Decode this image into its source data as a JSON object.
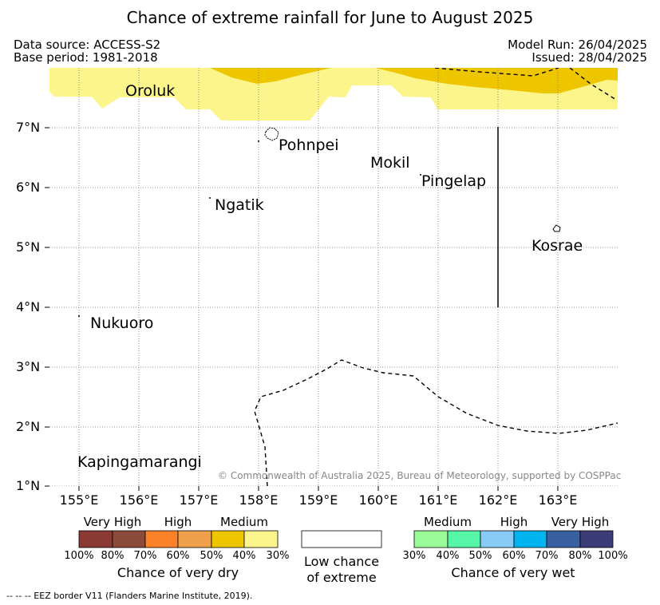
{
  "title": "Chance of extreme rainfall for June to August 2025",
  "data_source": "Data source: ACCESS-S2",
  "base_period": "Base period: 1981-2018",
  "model_run": "Model Run: 26/04/2025",
  "issued": "Issued: 28/04/2025",
  "map": {
    "lon_range": [
      154.5,
      164.0
    ],
    "lat_range": [
      1.0,
      8.0
    ],
    "grid": true,
    "x_ticks": [
      "155°E",
      "156°E",
      "157°E",
      "158°E",
      "159°E",
      "160°E",
      "161°E",
      "162°E",
      "163°E"
    ],
    "y_ticks": [
      "1°N",
      "2°N",
      "3°N",
      "4°N",
      "5°N",
      "6°N",
      "7°N"
    ],
    "places": [
      {
        "name": "Oroluk"
      },
      {
        "name": "Pohnpei"
      },
      {
        "name": "Mokil"
      },
      {
        "name": "Pingelap"
      },
      {
        "name": "Ngatik"
      },
      {
        "name": "Kosrae"
      },
      {
        "name": "Nukuoro"
      },
      {
        "name": "Kapingamarangi"
      }
    ],
    "copyright": "© Commonwealth of Australia 2025, Bureau of Meteorology, supported by COSPPac"
  },
  "colors": {
    "dry_very_high_100_80": "#8b3a33",
    "dry_very_high_80_70": "#8c4a3b",
    "dry_high_70_60": "#fb8228",
    "dry_high_60_50": "#eea04b",
    "dry_medium_50_40": "#eec600",
    "dry_medium_40_30": "#fcf58b",
    "low_chance": "#ffffff",
    "wet_medium_30_40": "#9afc98",
    "wet_medium_40_50": "#56f7a8",
    "wet_high_50_60": "#88cbf6",
    "wet_high_60_70": "#00b4ef",
    "wet_very_high_70_80": "#3860a0",
    "wet_very_high_80_100": "#3c3c79"
  },
  "legend": {
    "dry": {
      "title": "Chance of very dry",
      "categories": [
        "Very High",
        "High",
        "Medium"
      ],
      "ticks": [
        "100%",
        "80%",
        "70%",
        "60%",
        "50%",
        "40%",
        "30%"
      ]
    },
    "neutral": {
      "line1": "Low chance",
      "line2": "of extreme"
    },
    "wet": {
      "title": "Chance of very wet",
      "categories": [
        "Medium",
        "High",
        "Very High"
      ],
      "ticks": [
        "30%",
        "40%",
        "50%",
        "60%",
        "70%",
        "80%",
        "100%"
      ]
    }
  },
  "footnote": "--  --  -- EEZ border V11 (Flanders Marine Institute, 2019)."
}
